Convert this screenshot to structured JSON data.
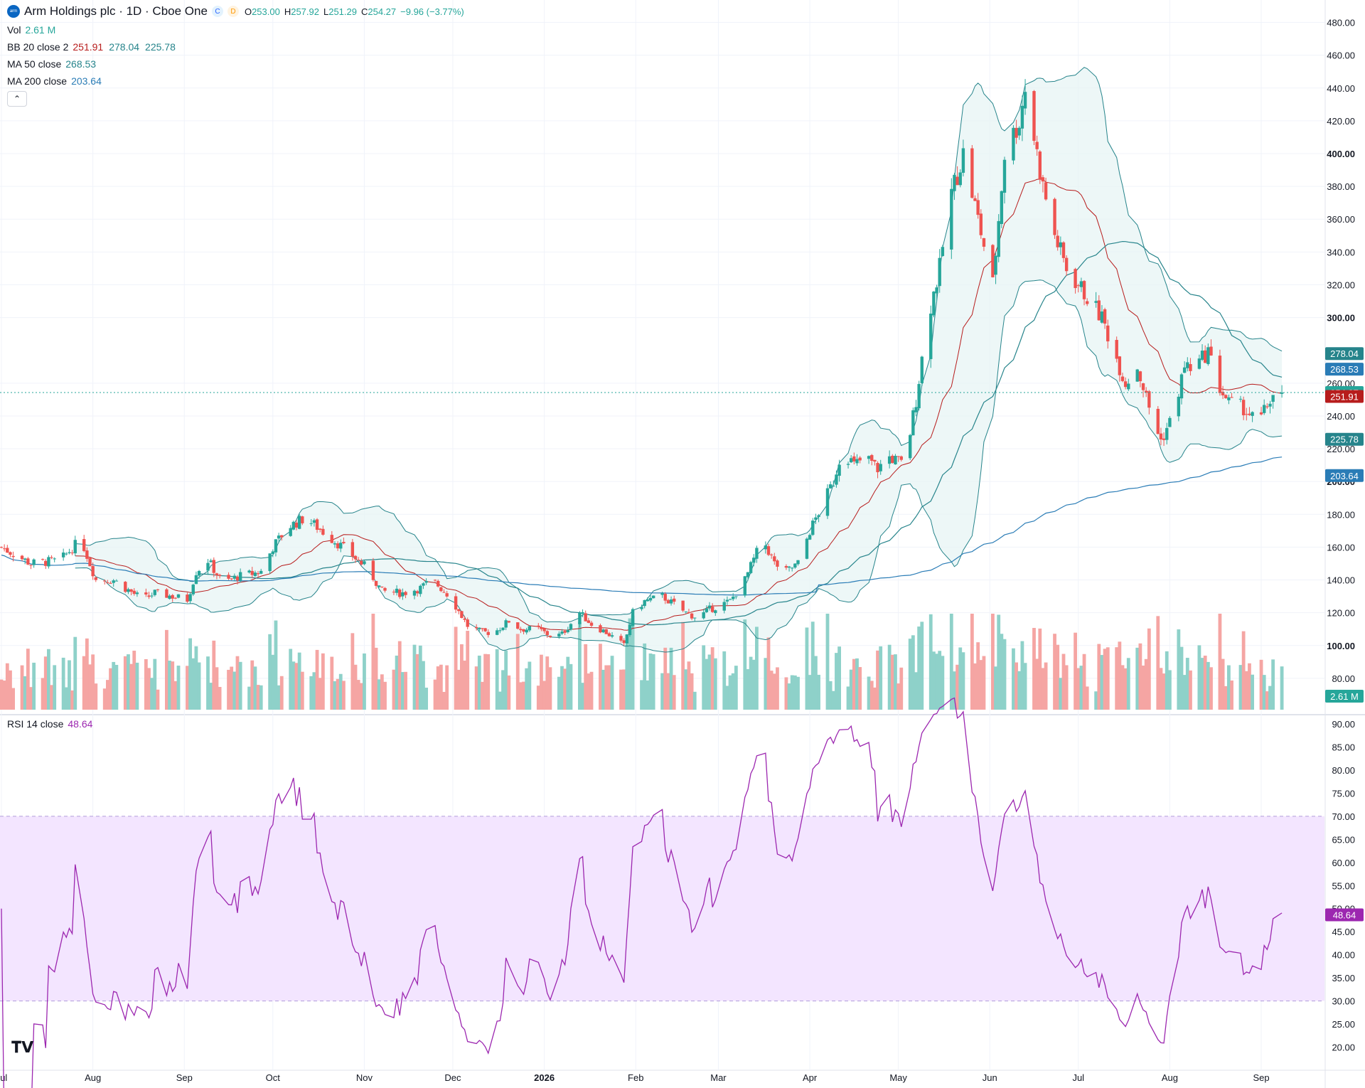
{
  "header": {
    "title": "Arm Holdings plc · 1D · Cboe One",
    "logo_text": "arm",
    "badge_c": "C",
    "badge_d": "D",
    "ohlc": [
      {
        "k": "O",
        "v": "253.00"
      },
      {
        "k": "H",
        "v": "257.92"
      },
      {
        "k": "L",
        "v": "251.29"
      },
      {
        "k": "C",
        "v": "254.27"
      },
      {
        "k": "",
        "v": "−9.96 (−3.77%)"
      }
    ]
  },
  "indicators": {
    "vol": {
      "label": "Vol",
      "value": "2.61 M"
    },
    "bb": {
      "label": "BB 20 close 2",
      "basis": "251.91",
      "upper": "278.04",
      "lower": "225.78"
    },
    "ma50": {
      "label": "MA 50 close",
      "value": "268.53"
    },
    "ma200": {
      "label": "MA 200 close",
      "value": "203.64"
    },
    "rsi": {
      "label": "RSI 14 close",
      "value": "48.64"
    }
  },
  "collapse_icon": "chevron-up-icon",
  "brand_mark": "tradingview-logo",
  "colors": {
    "up": "#26a69a",
    "down": "#ef5350",
    "bb_basis": "#b71c1c",
    "bb_band": "#26848b",
    "ma50": "#26848b",
    "ma200": "#2a7cb6",
    "rsi": "#9c27b0",
    "rsi_band": "#f3e5ff",
    "vol_up": "#8ed1c9",
    "vol_down": "#f5a5a3"
  },
  "chart_data": {
    "type": "candlestick",
    "price_axis": {
      "ticks": [
        "480.00",
        "460.00",
        "440.00",
        "420.00",
        "400.00",
        "380.00",
        "360.00",
        "340.00",
        "320.00",
        "300.00",
        "260.00",
        "240.00",
        "220.00",
        "200.00",
        "180.00",
        "160.00",
        "140.00",
        "120.00",
        "100.00",
        "80.00"
      ],
      "bold_ticks": [
        "400.00",
        "300.00",
        "200.00",
        "100.00"
      ],
      "ylim": [
        60,
        485
      ],
      "price_labels": [
        {
          "text": "278.04",
          "value": 278.04,
          "color": "#26848b"
        },
        {
          "text": "268.53",
          "value": 268.53,
          "color": "#2a7cb6"
        },
        {
          "text": "254.27",
          "value": 254.27,
          "color": "#26a69a"
        },
        {
          "text": "251.91",
          "value": 251.91,
          "color": "#b71c1c"
        },
        {
          "text": "225.78",
          "value": 225.78,
          "color": "#26848b"
        },
        {
          "text": "203.64",
          "value": 203.64,
          "color": "#2a7cb6"
        }
      ],
      "volume_label": "2.61 M"
    },
    "x_axis": {
      "labels": [
        "Jul",
        "Aug",
        "Sep",
        "Oct",
        "Nov",
        "Dec",
        "2026",
        "Feb",
        "Mar",
        "Apr",
        "May",
        "Jun",
        "Jul",
        "Aug",
        "Sep"
      ],
      "bold_labels": [
        "2026"
      ],
      "label_days": [
        0,
        31,
        62,
        92,
        123,
        153,
        184,
        215,
        243,
        274,
        304,
        335,
        365,
        396,
        427
      ]
    },
    "rsi_axis": {
      "ticks": [
        "90.00",
        "85.00",
        "80.00",
        "75.00",
        "70.00",
        "65.00",
        "60.00",
        "55.00",
        "50.00",
        "45.00",
        "40.00",
        "35.00",
        "30.00",
        "25.00",
        "20.00"
      ],
      "ylim": [
        15,
        92
      ],
      "overbought": 70,
      "oversold": 30,
      "label": {
        "text": "48.64",
        "value": 48.64
      }
    },
    "anchors": {
      "start_close": 160,
      "points": [
        [
          0,
          160
        ],
        [
          10,
          150
        ],
        [
          20,
          152
        ],
        [
          27,
          165
        ],
        [
          32,
          140
        ],
        [
          38,
          140
        ],
        [
          42,
          135
        ],
        [
          48,
          128
        ],
        [
          52,
          132
        ],
        [
          58,
          130
        ],
        [
          63,
          128
        ],
        [
          66,
          145
        ],
        [
          70,
          152
        ],
        [
          75,
          138
        ],
        [
          80,
          142
        ],
        [
          88,
          145
        ],
        [
          92,
          160
        ],
        [
          97,
          172
        ],
        [
          103,
          178
        ],
        [
          110,
          168
        ],
        [
          117,
          158
        ],
        [
          124,
          147
        ],
        [
          129,
          133
        ],
        [
          136,
          132
        ],
        [
          142,
          135
        ],
        [
          146,
          140
        ],
        [
          152,
          130
        ],
        [
          158,
          112
        ],
        [
          163,
          108
        ],
        [
          167,
          108
        ],
        [
          172,
          115
        ],
        [
          176,
          110
        ],
        [
          182,
          110
        ],
        [
          187,
          105
        ],
        [
          190,
          107
        ],
        [
          196,
          120
        ],
        [
          200,
          113
        ],
        [
          205,
          108
        ],
        [
          211,
          100
        ],
        [
          214,
          120
        ],
        [
          218,
          127
        ],
        [
          224,
          130
        ],
        [
          228,
          125
        ],
        [
          232,
          120
        ],
        [
          236,
          117
        ],
        [
          240,
          122
        ],
        [
          247,
          127
        ],
        [
          252,
          140
        ],
        [
          258,
          165
        ],
        [
          262,
          150
        ],
        [
          266,
          145
        ],
        [
          270,
          150
        ],
        [
          274,
          170
        ],
        [
          278,
          185
        ],
        [
          282,
          200
        ],
        [
          285,
          220
        ],
        [
          289,
          210
        ],
        [
          293,
          215
        ],
        [
          297,
          208
        ],
        [
          301,
          215
        ],
        [
          306,
          210
        ],
        [
          310,
          250
        ],
        [
          314,
          300
        ],
        [
          318,
          330
        ],
        [
          321,
          370
        ],
        [
          326,
          400
        ],
        [
          331,
          360
        ],
        [
          336,
          320
        ],
        [
          340,
          400
        ],
        [
          345,
          420
        ],
        [
          347,
          440
        ],
        [
          351,
          400
        ],
        [
          353,
          380
        ],
        [
          357,
          350
        ],
        [
          361,
          330
        ],
        [
          365,
          320
        ],
        [
          369,
          310
        ],
        [
          373,
          300
        ],
        [
          377,
          280
        ],
        [
          381,
          260
        ],
        [
          385,
          270
        ],
        [
          389,
          245
        ],
        [
          393,
          225
        ],
        [
          397,
          240
        ],
        [
          401,
          270
        ],
        [
          405,
          270
        ],
        [
          409,
          280
        ],
        [
          412,
          260
        ],
        [
          416,
          248
        ],
        [
          421,
          245
        ],
        [
          426,
          235
        ],
        [
          430,
          250
        ],
        [
          432,
          255
        ],
        [
          434,
          254.27
        ]
      ],
      "last_day": 434
    },
    "volume_ylim": [
      0,
      40
    ],
    "series": [
      {
        "type": "candles",
        "name": "Arm Holdings plc"
      },
      {
        "type": "line",
        "name": "BB 20 close 2"
      },
      {
        "type": "line",
        "name": "MA 50 close"
      },
      {
        "type": "line",
        "name": "MA 200 close"
      },
      {
        "type": "volume",
        "name": "Vol"
      },
      {
        "type": "line",
        "name": "RSI 14 close"
      }
    ],
    "grid": true
  }
}
